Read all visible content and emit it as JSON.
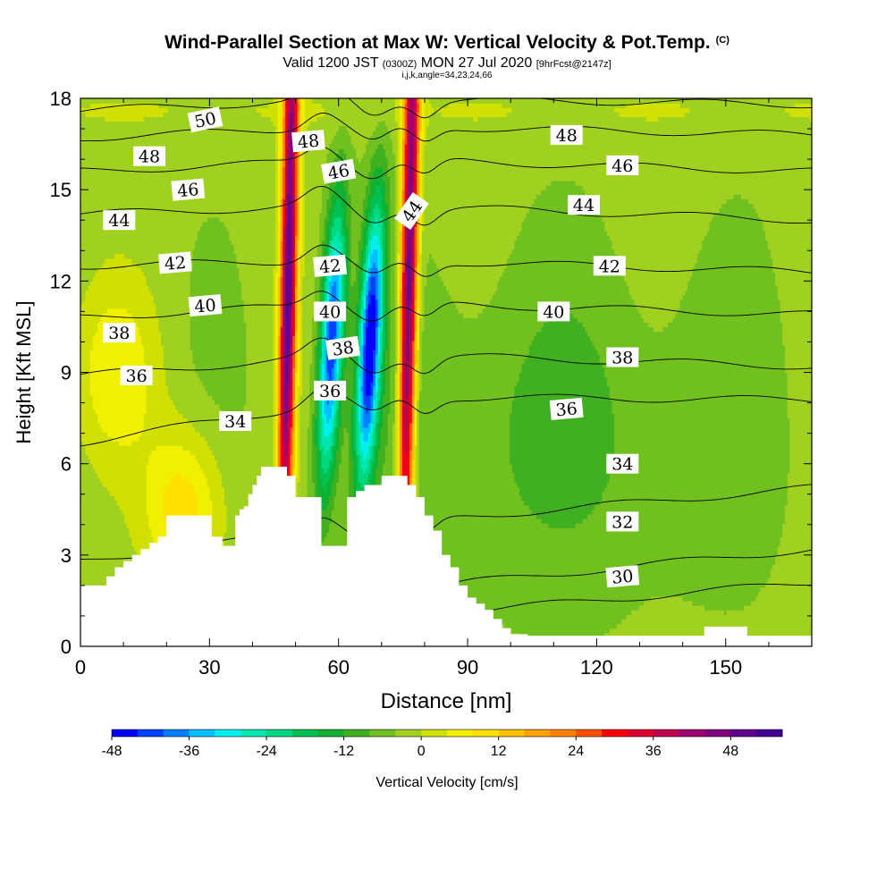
{
  "title": {
    "main": "Wind-Parallel Section at Max W: Vertical Velocity & Pot.Temp.",
    "copyright": "(C)",
    "valid_prefix": "Valid 1200 JST",
    "valid_utc": "(0300Z)",
    "valid_date": "MON 27 Jul 2020",
    "forecast": "[9hrFcst@2147z]",
    "indices": "i,j,k,angle=34,23,24,66"
  },
  "chart_data": {
    "type": "heatmap",
    "xlabel": "Distance [nm]",
    "ylabel": "Height [Kft MSL]",
    "xlim": [
      0,
      170
    ],
    "ylim": [
      0,
      18
    ],
    "x_ticks": [
      0,
      30,
      60,
      90,
      120,
      150
    ],
    "y_ticks": [
      0,
      3,
      6,
      9,
      12,
      15,
      18
    ],
    "colorbar": {
      "label": "Vertical Velocity [cm/s]",
      "range": [
        -48,
        54
      ],
      "step": 4,
      "tick_values": [
        -48,
        -36,
        -24,
        -12,
        0,
        12,
        24,
        36,
        48
      ],
      "colors": [
        "#0000ff",
        "#0040ff",
        "#0080ff",
        "#00c0ff",
        "#00f0f0",
        "#00e8b0",
        "#00d880",
        "#00c050",
        "#10b030",
        "#40b020",
        "#70c020",
        "#a0d020",
        "#d0e000",
        "#f0f000",
        "#ffe000",
        "#ffc000",
        "#ffa000",
        "#ff8000",
        "#ff5000",
        "#ff0000",
        "#e00030",
        "#c00050",
        "#a00070",
        "#800080",
        "#600090",
        "#400090"
      ]
    },
    "features": [
      {
        "name": "updraft",
        "x": 48,
        "peak_cm_s": 54
      },
      {
        "name": "downdraft",
        "x": 58,
        "peak_cm_s": -40
      },
      {
        "name": "downdraft",
        "x": 67,
        "peak_cm_s": -44
      },
      {
        "name": "updraft",
        "x": 76,
        "peak_cm_s": 54
      }
    ],
    "terrain": {
      "x": [
        0,
        6,
        8,
        10,
        12,
        14,
        16,
        18,
        20,
        30,
        30.5,
        32,
        33,
        33.5,
        36,
        37,
        38,
        39,
        40,
        41,
        42,
        44,
        46,
        48,
        49,
        50,
        52,
        54,
        56,
        58,
        60,
        62,
        64,
        66,
        68,
        70,
        72,
        74,
        76,
        78,
        80,
        82,
        84,
        86,
        88,
        90,
        92,
        94,
        96,
        98,
        100,
        104,
        106,
        108,
        110,
        130,
        140,
        145,
        152,
        155,
        170
      ],
      "y": [
        2.0,
        2.3,
        2.6,
        2.8,
        3.0,
        3.2,
        3.4,
        3.6,
        4.3,
        4.3,
        3.6,
        3.6,
        3.3,
        3.3,
        4.3,
        4.5,
        4.6,
        5.0,
        5.3,
        5.6,
        5.9,
        5.9,
        5.9,
        5.6,
        5.6,
        4.9,
        4.9,
        4.9,
        3.3,
        3.3,
        3.3,
        4.9,
        5.1,
        5.3,
        5.3,
        5.6,
        5.6,
        5.6,
        5.3,
        4.9,
        4.3,
        3.8,
        3.0,
        2.6,
        2.0,
        1.6,
        1.4,
        1.2,
        0.9,
        0.6,
        0.4,
        0.35,
        0.35,
        0.35,
        0.35,
        0.35,
        0.35,
        0.65,
        0.65,
        0.35,
        0.35
      ]
    },
    "contours": [
      {
        "label": "30",
        "y_left": 0.9,
        "y_mid": 0.9,
        "y_right": 2.1
      },
      {
        "label": "32",
        "y_left": 1.6,
        "y_mid": 1.8,
        "y_right": 3.2
      },
      {
        "label": "34",
        "y_left": 2.8,
        "y_mid": 4.0,
        "y_right": 5.2
      },
      {
        "label": "36",
        "y_left": 6.7,
        "y_mid": 8.2,
        "y_right": 8.1
      },
      {
        "label": "38",
        "y_left": 8.9,
        "y_mid": 9.6,
        "y_right": 9.2
      },
      {
        "label": "40",
        "y_left": 10.8,
        "y_mid": 11.3,
        "y_right": 10.9
      },
      {
        "label": "42",
        "y_left": 12.5,
        "y_mid": 12.7,
        "y_right": 12.3
      },
      {
        "label": "44",
        "y_left": 14.2,
        "y_mid": 14.5,
        "y_right": 14.0
      },
      {
        "label": "46",
        "y_left": 15.6,
        "y_mid": 16.0,
        "y_right": 15.6
      },
      {
        "label": "48",
        "y_left": 16.7,
        "y_mid": 17.1,
        "y_right": 16.8
      },
      {
        "label": "50",
        "y_left": 17.6,
        "y_mid": 18.0,
        "y_right": 17.8
      }
    ],
    "contour_labels": [
      {
        "text": "50",
        "x": 29,
        "y": 17.3,
        "rotate": -12
      },
      {
        "text": "48",
        "x": 53,
        "y": 16.6,
        "rotate": -5
      },
      {
        "text": "48",
        "x": 16,
        "y": 16.1,
        "rotate": 0
      },
      {
        "text": "48",
        "x": 113,
        "y": 16.8,
        "rotate": 0
      },
      {
        "text": "46",
        "x": 60,
        "y": 15.6,
        "rotate": -10
      },
      {
        "text": "46",
        "x": 25,
        "y": 15.0,
        "rotate": -5
      },
      {
        "text": "46",
        "x": 126,
        "y": 15.8,
        "rotate": 0
      },
      {
        "text": "44",
        "x": 77,
        "y": 14.3,
        "rotate": -55
      },
      {
        "text": "44",
        "x": 9,
        "y": 14.0,
        "rotate": 0
      },
      {
        "text": "44",
        "x": 117,
        "y": 14.5,
        "rotate": 0
      },
      {
        "text": "42",
        "x": 22,
        "y": 12.6,
        "rotate": -5
      },
      {
        "text": "42",
        "x": 58,
        "y": 12.5,
        "rotate": -5
      },
      {
        "text": "42",
        "x": 123,
        "y": 12.5,
        "rotate": 0
      },
      {
        "text": "40",
        "x": 29,
        "y": 11.2,
        "rotate": -5
      },
      {
        "text": "40",
        "x": 58,
        "y": 11.0,
        "rotate": 0
      },
      {
        "text": "40",
        "x": 110,
        "y": 11.0,
        "rotate": 0
      },
      {
        "text": "38",
        "x": 9,
        "y": 10.3,
        "rotate": 0
      },
      {
        "text": "38",
        "x": 61,
        "y": 9.8,
        "rotate": -8
      },
      {
        "text": "38",
        "x": 126,
        "y": 9.5,
        "rotate": 0
      },
      {
        "text": "36",
        "x": 13,
        "y": 8.9,
        "rotate": 0
      },
      {
        "text": "36",
        "x": 58,
        "y": 8.4,
        "rotate": 0
      },
      {
        "text": "36",
        "x": 113,
        "y": 7.8,
        "rotate": -5
      },
      {
        "text": "34",
        "x": 36,
        "y": 7.4,
        "rotate": 0
      },
      {
        "text": "34",
        "x": 126,
        "y": 6.0,
        "rotate": 0
      },
      {
        "text": "32",
        "x": 126,
        "y": 4.1,
        "rotate": 0
      },
      {
        "text": "30",
        "x": 126,
        "y": 2.3,
        "rotate": -5
      }
    ]
  }
}
